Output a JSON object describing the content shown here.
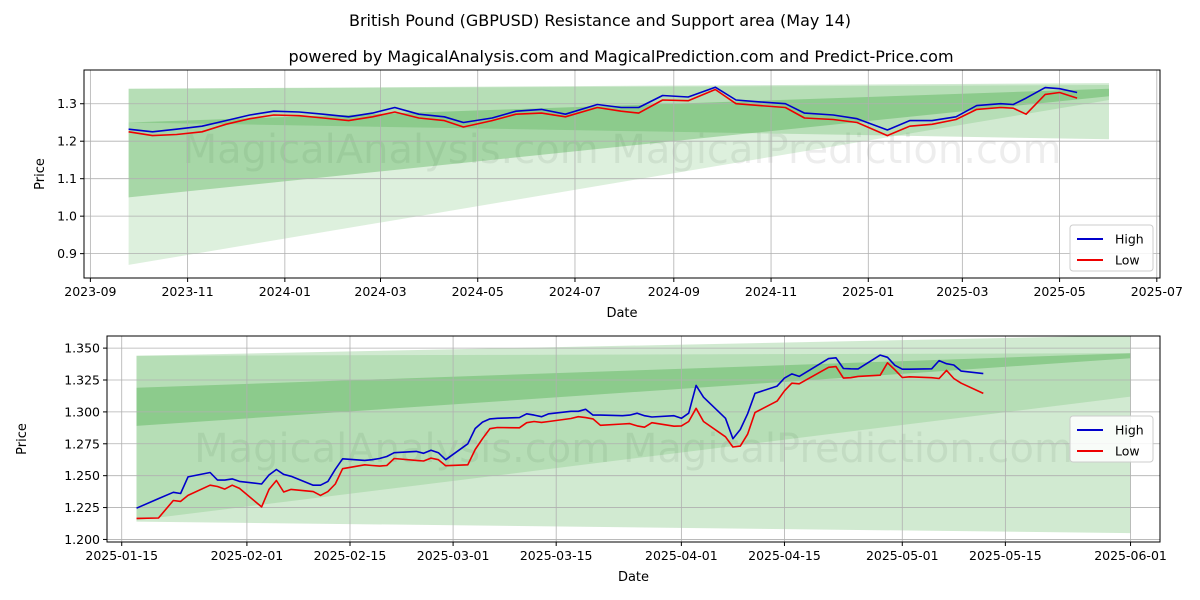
{
  "title": "British Pound (GBPUSD) Resistance and Support area (May 14)",
  "subtitle": "powered by MagicalAnalysis.com and MagicalPrediction.com and Predict-Price.com",
  "watermark": "MagicalAnalysis.com   MagicalPrediction.com",
  "colors": {
    "high": "#0000cc",
    "low": "#ee0000",
    "band": "#2ca02c"
  },
  "chart_data": [
    {
      "type": "line",
      "xlabel": "Date",
      "ylabel": "Price",
      "x_ticks": [
        "2023-09",
        "2023-11",
        "2024-01",
        "2024-03",
        "2024-05",
        "2024-07",
        "2024-09",
        "2024-11",
        "2025-01",
        "2025-03",
        "2025-05",
        "2025-07"
      ],
      "y_ticks": [
        "0.9",
        "1.0",
        "1.1",
        "1.2",
        "1.3"
      ],
      "xlim": [
        "2023-08-28",
        "2025-07-03"
      ],
      "ylim": [
        0.835,
        1.39
      ],
      "grid": true,
      "legend": {
        "position": "center-right-bottom",
        "entries": [
          "High",
          "Low"
        ]
      },
      "bands": [
        {
          "x": [
            "2023-09-25",
            "2025-06-01"
          ],
          "upper": [
            1.34,
            1.355
          ],
          "lower": [
            1.25,
            1.205
          ]
        },
        {
          "x": [
            "2023-09-25",
            "2025-06-01"
          ],
          "upper": [
            1.25,
            1.34
          ],
          "lower": [
            1.05,
            1.32
          ]
        },
        {
          "x": [
            "2023-09-25",
            "2025-06-01"
          ],
          "upper": [
            1.34,
            1.35
          ],
          "lower": [
            0.87,
            1.31
          ]
        }
      ],
      "series": [
        {
          "name": "High",
          "x": [
            "2023-09-25",
            "2023-10-10",
            "2023-10-25",
            "2023-11-10",
            "2023-11-25",
            "2023-12-10",
            "2023-12-25",
            "2024-01-10",
            "2024-01-25",
            "2024-02-10",
            "2024-02-25",
            "2024-03-10",
            "2024-03-25",
            "2024-04-10",
            "2024-04-22",
            "2024-05-10",
            "2024-05-25",
            "2024-06-10",
            "2024-06-25",
            "2024-07-15",
            "2024-07-30",
            "2024-08-10",
            "2024-08-25",
            "2024-09-10",
            "2024-09-27",
            "2024-10-10",
            "2024-10-25",
            "2024-11-10",
            "2024-11-22",
            "2024-12-10",
            "2024-12-25",
            "2025-01-13",
            "2025-01-27",
            "2025-02-10",
            "2025-02-25",
            "2025-03-10",
            "2025-03-25",
            "2025-04-02",
            "2025-04-10",
            "2025-04-22",
            "2025-05-01",
            "2025-05-12"
          ],
          "values": [
            1.232,
            1.225,
            1.232,
            1.24,
            1.255,
            1.27,
            1.28,
            1.278,
            1.272,
            1.265,
            1.275,
            1.29,
            1.272,
            1.265,
            1.25,
            1.262,
            1.28,
            1.285,
            1.272,
            1.298,
            1.29,
            1.29,
            1.322,
            1.318,
            1.344,
            1.31,
            1.305,
            1.3,
            1.275,
            1.27,
            1.26,
            1.23,
            1.255,
            1.255,
            1.265,
            1.295,
            1.3,
            1.298,
            1.315,
            1.343,
            1.34,
            1.33
          ]
        },
        {
          "name": "Low",
          "x": [
            "2023-09-25",
            "2023-10-10",
            "2023-10-25",
            "2023-11-10",
            "2023-11-25",
            "2023-12-10",
            "2023-12-25",
            "2024-01-10",
            "2024-01-25",
            "2024-02-10",
            "2024-02-25",
            "2024-03-10",
            "2024-03-25",
            "2024-04-10",
            "2024-04-22",
            "2024-05-10",
            "2024-05-25",
            "2024-06-10",
            "2024-06-25",
            "2024-07-15",
            "2024-07-30",
            "2024-08-10",
            "2024-08-25",
            "2024-09-10",
            "2024-09-27",
            "2024-10-10",
            "2024-10-25",
            "2024-11-10",
            "2024-11-22",
            "2024-12-10",
            "2024-12-25",
            "2025-01-13",
            "2025-01-27",
            "2025-02-10",
            "2025-02-25",
            "2025-03-10",
            "2025-03-25",
            "2025-04-02",
            "2025-04-10",
            "2025-04-22",
            "2025-05-01",
            "2025-05-12"
          ],
          "values": [
            1.225,
            1.215,
            1.218,
            1.225,
            1.245,
            1.26,
            1.27,
            1.268,
            1.262,
            1.255,
            1.265,
            1.278,
            1.262,
            1.255,
            1.238,
            1.255,
            1.272,
            1.275,
            1.265,
            1.29,
            1.28,
            1.275,
            1.31,
            1.308,
            1.338,
            1.3,
            1.295,
            1.29,
            1.262,
            1.258,
            1.25,
            1.215,
            1.24,
            1.245,
            1.258,
            1.285,
            1.29,
            1.288,
            1.272,
            1.325,
            1.33,
            1.315
          ]
        }
      ]
    },
    {
      "type": "line",
      "xlabel": "Date",
      "ylabel": "Price",
      "x_ticks": [
        "2025-01-15",
        "2025-02-01",
        "2025-02-15",
        "2025-03-01",
        "2025-03-15",
        "2025-04-01",
        "2025-04-15",
        "2025-05-01",
        "2025-05-15",
        "2025-06-01"
      ],
      "y_ticks": [
        "1.200",
        "1.225",
        "1.250",
        "1.275",
        "1.300",
        "1.325",
        "1.350"
      ],
      "xlim": [
        "2025-01-13",
        "2025-06-05"
      ],
      "ylim": [
        1.198,
        1.3595
      ],
      "grid": true,
      "legend": {
        "position": "center-right",
        "entries": [
          "High",
          "Low"
        ]
      },
      "bands": [
        {
          "x": [
            "2025-01-17",
            "2025-06-01"
          ],
          "upper": [
            1.344,
            1.36
          ],
          "lower": [
            1.214,
            1.205
          ]
        },
        {
          "x": [
            "2025-01-17",
            "2025-06-01"
          ],
          "upper": [
            1.319,
            1.346
          ],
          "lower": [
            1.289,
            1.342
          ]
        },
        {
          "x": [
            "2025-01-17",
            "2025-06-01"
          ],
          "upper": [
            1.344,
            1.346
          ],
          "lower": [
            1.215,
            1.312
          ]
        }
      ],
      "series": [
        {
          "name": "High",
          "x": [
            "2025-01-17",
            "2025-01-20",
            "2025-01-22",
            "2025-01-23",
            "2025-01-24",
            "2025-01-27",
            "2025-01-28",
            "2025-01-29",
            "2025-01-30",
            "2025-01-31",
            "2025-02-03",
            "2025-02-04",
            "2025-02-05",
            "2025-02-06",
            "2025-02-07",
            "2025-02-10",
            "2025-02-11",
            "2025-02-12",
            "2025-02-13",
            "2025-02-14",
            "2025-02-17",
            "2025-02-18",
            "2025-02-19",
            "2025-02-20",
            "2025-02-21",
            "2025-02-24",
            "2025-02-25",
            "2025-02-26",
            "2025-02-27",
            "2025-02-28",
            "2025-03-03",
            "2025-03-04",
            "2025-03-05",
            "2025-03-06",
            "2025-03-07",
            "2025-03-10",
            "2025-03-11",
            "2025-03-12",
            "2025-03-13",
            "2025-03-14",
            "2025-03-17",
            "2025-03-18",
            "2025-03-19",
            "2025-03-20",
            "2025-03-21",
            "2025-03-24",
            "2025-03-25",
            "2025-03-26",
            "2025-03-27",
            "2025-03-28",
            "2025-03-31",
            "2025-04-01",
            "2025-04-02",
            "2025-04-03",
            "2025-04-04",
            "2025-04-07",
            "2025-04-08",
            "2025-04-09",
            "2025-04-10",
            "2025-04-11",
            "2025-04-14",
            "2025-04-15",
            "2025-04-16",
            "2025-04-17",
            "2025-04-21",
            "2025-04-22",
            "2025-04-23",
            "2025-04-24",
            "2025-04-25",
            "2025-04-28",
            "2025-04-29",
            "2025-04-30",
            "2025-05-01",
            "2025-05-02",
            "2025-05-05",
            "2025-05-06",
            "2025-05-07",
            "2025-05-08",
            "2025-05-09",
            "2025-05-12"
          ],
          "values": [
            1.2245,
            1.232,
            1.237,
            1.236,
            1.249,
            1.2525,
            1.2465,
            1.2465,
            1.2475,
            1.2455,
            1.2435,
            1.2505,
            1.2548,
            1.251,
            1.2495,
            1.2425,
            1.2425,
            1.2455,
            1.255,
            1.2632,
            1.262,
            1.2625,
            1.2635,
            1.265,
            1.268,
            1.269,
            1.2675,
            1.27,
            1.268,
            1.2625,
            1.275,
            1.287,
            1.292,
            1.2945,
            1.295,
            1.2955,
            1.2985,
            1.2975,
            1.2962,
            1.2985,
            1.3005,
            1.3005,
            1.302,
            1.2975,
            1.2975,
            1.297,
            1.2975,
            1.299,
            1.297,
            1.296,
            1.297,
            1.295,
            1.299,
            1.3208,
            1.3115,
            1.295,
            1.279,
            1.2862,
            1.2985,
            1.3145,
            1.3202,
            1.3265,
            1.3298,
            1.3278,
            1.3418,
            1.3424,
            1.334,
            1.3338,
            1.3337,
            1.3445,
            1.3428,
            1.3365,
            1.3335,
            1.3335,
            1.3338,
            1.3402,
            1.3378,
            1.3368,
            1.332,
            1.33
          ]
        },
        {
          "name": "Low",
          "x": [
            "2025-01-17",
            "2025-01-20",
            "2025-01-22",
            "2025-01-23",
            "2025-01-24",
            "2025-01-27",
            "2025-01-28",
            "2025-01-29",
            "2025-01-30",
            "2025-01-31",
            "2025-02-03",
            "2025-02-04",
            "2025-02-05",
            "2025-02-06",
            "2025-02-07",
            "2025-02-10",
            "2025-02-11",
            "2025-02-12",
            "2025-02-13",
            "2025-02-14",
            "2025-02-17",
            "2025-02-18",
            "2025-02-19",
            "2025-02-20",
            "2025-02-21",
            "2025-02-24",
            "2025-02-25",
            "2025-02-26",
            "2025-02-27",
            "2025-02-28",
            "2025-03-03",
            "2025-03-04",
            "2025-03-05",
            "2025-03-06",
            "2025-03-07",
            "2025-03-10",
            "2025-03-11",
            "2025-03-12",
            "2025-03-13",
            "2025-03-14",
            "2025-03-17",
            "2025-03-18",
            "2025-03-19",
            "2025-03-20",
            "2025-03-21",
            "2025-03-24",
            "2025-03-25",
            "2025-03-26",
            "2025-03-27",
            "2025-03-28",
            "2025-03-31",
            "2025-04-01",
            "2025-04-02",
            "2025-04-03",
            "2025-04-04",
            "2025-04-07",
            "2025-04-08",
            "2025-04-09",
            "2025-04-10",
            "2025-04-11",
            "2025-04-14",
            "2025-04-15",
            "2025-04-16",
            "2025-04-17",
            "2025-04-21",
            "2025-04-22",
            "2025-04-23",
            "2025-04-24",
            "2025-04-25",
            "2025-04-28",
            "2025-04-29",
            "2025-04-30",
            "2025-05-01",
            "2025-05-02",
            "2025-05-05",
            "2025-05-06",
            "2025-05-07",
            "2025-05-08",
            "2025-05-09",
            "2025-05-12"
          ],
          "values": [
            1.2165,
            1.2168,
            1.2305,
            1.2298,
            1.2345,
            1.2425,
            1.2415,
            1.2395,
            1.2425,
            1.24,
            1.2255,
            1.2392,
            1.2462,
            1.2372,
            1.2392,
            1.2375,
            1.2345,
            1.2375,
            1.2435,
            1.2555,
            1.2585,
            1.258,
            1.2575,
            1.258,
            1.2635,
            1.262,
            1.2615,
            1.2638,
            1.2625,
            1.2578,
            1.2585,
            1.2705,
            1.279,
            1.2868,
            1.2878,
            1.2875,
            1.2915,
            1.2925,
            1.2918,
            1.2925,
            1.2948,
            1.2962,
            1.2955,
            1.2945,
            1.2895,
            1.2905,
            1.2908,
            1.289,
            1.288,
            1.2915,
            1.2888,
            1.289,
            1.2925,
            1.3028,
            1.2925,
            1.2805,
            1.2725,
            1.2732,
            1.2825,
            1.2995,
            1.3085,
            1.3165,
            1.3225,
            1.322,
            1.335,
            1.3355,
            1.3265,
            1.3268,
            1.3278,
            1.3288,
            1.3385,
            1.333,
            1.327,
            1.3275,
            1.3268,
            1.3262,
            1.3325,
            1.3262,
            1.3225,
            1.3145
          ]
        }
      ]
    }
  ]
}
